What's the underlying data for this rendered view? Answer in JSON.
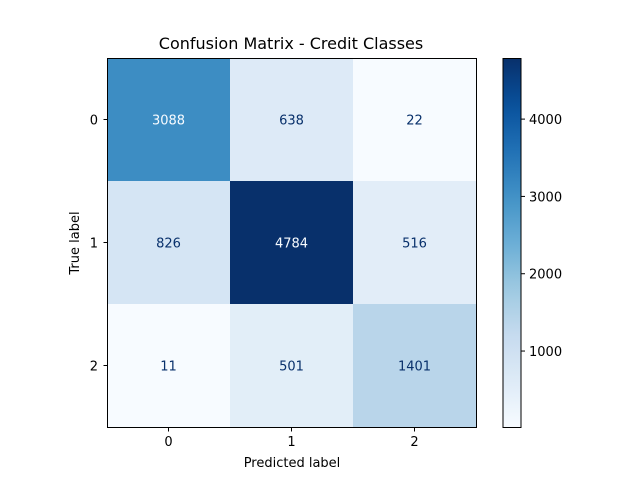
{
  "chart_data": {
    "type": "heatmap",
    "title": "Confusion Matrix - Credit Classes",
    "xlabel": "Predicted label",
    "ylabel": "True label",
    "x_categories": [
      "0",
      "1",
      "2"
    ],
    "y_categories": [
      "0",
      "1",
      "2"
    ],
    "values": [
      [
        3088,
        638,
        22
      ],
      [
        826,
        4784,
        516
      ],
      [
        11,
        501,
        1401
      ]
    ],
    "colormap": "Blues",
    "color_range": [
      11,
      4784
    ],
    "colorbar_ticks": [
      1000,
      2000,
      3000,
      4000
    ],
    "colorbar_tick_labels": [
      "1000",
      "2000",
      "3000",
      "4000"
    ]
  }
}
